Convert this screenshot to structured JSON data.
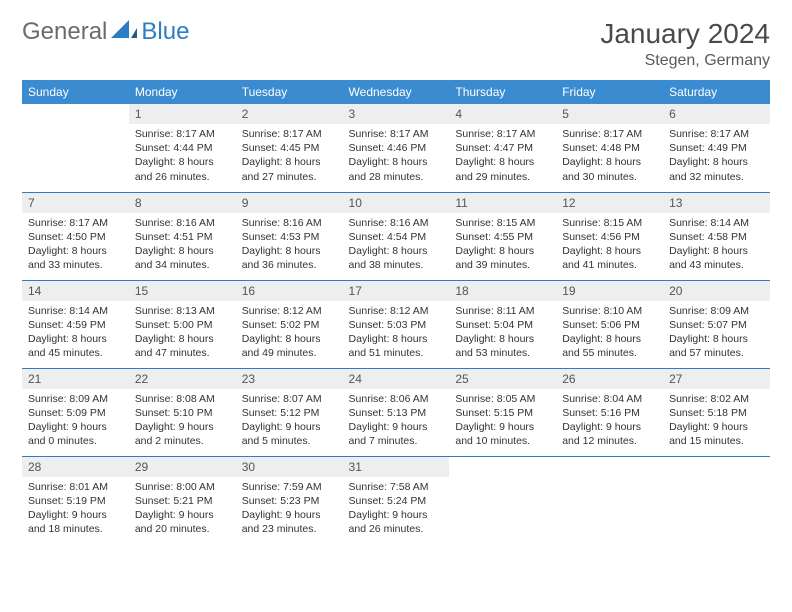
{
  "logo": {
    "general": "General",
    "blue": "Blue"
  },
  "title": "January 2024",
  "location": "Stegen, Germany",
  "colors": {
    "header_bg": "#3a8bd0",
    "header_text": "#ffffff",
    "daynum_bg": "#eceef0",
    "row_divider": "#2d7dc4",
    "logo_gray": "#6b6b6b",
    "logo_blue": "#2d7dc4"
  },
  "weekdays": [
    "Sunday",
    "Monday",
    "Tuesday",
    "Wednesday",
    "Thursday",
    "Friday",
    "Saturday"
  ],
  "weeks": [
    [
      null,
      {
        "n": "1",
        "sr": "Sunrise: 8:17 AM",
        "ss": "Sunset: 4:44 PM",
        "dl": "Daylight: 8 hours and 26 minutes."
      },
      {
        "n": "2",
        "sr": "Sunrise: 8:17 AM",
        "ss": "Sunset: 4:45 PM",
        "dl": "Daylight: 8 hours and 27 minutes."
      },
      {
        "n": "3",
        "sr": "Sunrise: 8:17 AM",
        "ss": "Sunset: 4:46 PM",
        "dl": "Daylight: 8 hours and 28 minutes."
      },
      {
        "n": "4",
        "sr": "Sunrise: 8:17 AM",
        "ss": "Sunset: 4:47 PM",
        "dl": "Daylight: 8 hours and 29 minutes."
      },
      {
        "n": "5",
        "sr": "Sunrise: 8:17 AM",
        "ss": "Sunset: 4:48 PM",
        "dl": "Daylight: 8 hours and 30 minutes."
      },
      {
        "n": "6",
        "sr": "Sunrise: 8:17 AM",
        "ss": "Sunset: 4:49 PM",
        "dl": "Daylight: 8 hours and 32 minutes."
      }
    ],
    [
      {
        "n": "7",
        "sr": "Sunrise: 8:17 AM",
        "ss": "Sunset: 4:50 PM",
        "dl": "Daylight: 8 hours and 33 minutes."
      },
      {
        "n": "8",
        "sr": "Sunrise: 8:16 AM",
        "ss": "Sunset: 4:51 PM",
        "dl": "Daylight: 8 hours and 34 minutes."
      },
      {
        "n": "9",
        "sr": "Sunrise: 8:16 AM",
        "ss": "Sunset: 4:53 PM",
        "dl": "Daylight: 8 hours and 36 minutes."
      },
      {
        "n": "10",
        "sr": "Sunrise: 8:16 AM",
        "ss": "Sunset: 4:54 PM",
        "dl": "Daylight: 8 hours and 38 minutes."
      },
      {
        "n": "11",
        "sr": "Sunrise: 8:15 AM",
        "ss": "Sunset: 4:55 PM",
        "dl": "Daylight: 8 hours and 39 minutes."
      },
      {
        "n": "12",
        "sr": "Sunrise: 8:15 AM",
        "ss": "Sunset: 4:56 PM",
        "dl": "Daylight: 8 hours and 41 minutes."
      },
      {
        "n": "13",
        "sr": "Sunrise: 8:14 AM",
        "ss": "Sunset: 4:58 PM",
        "dl": "Daylight: 8 hours and 43 minutes."
      }
    ],
    [
      {
        "n": "14",
        "sr": "Sunrise: 8:14 AM",
        "ss": "Sunset: 4:59 PM",
        "dl": "Daylight: 8 hours and 45 minutes."
      },
      {
        "n": "15",
        "sr": "Sunrise: 8:13 AM",
        "ss": "Sunset: 5:00 PM",
        "dl": "Daylight: 8 hours and 47 minutes."
      },
      {
        "n": "16",
        "sr": "Sunrise: 8:12 AM",
        "ss": "Sunset: 5:02 PM",
        "dl": "Daylight: 8 hours and 49 minutes."
      },
      {
        "n": "17",
        "sr": "Sunrise: 8:12 AM",
        "ss": "Sunset: 5:03 PM",
        "dl": "Daylight: 8 hours and 51 minutes."
      },
      {
        "n": "18",
        "sr": "Sunrise: 8:11 AM",
        "ss": "Sunset: 5:04 PM",
        "dl": "Daylight: 8 hours and 53 minutes."
      },
      {
        "n": "19",
        "sr": "Sunrise: 8:10 AM",
        "ss": "Sunset: 5:06 PM",
        "dl": "Daylight: 8 hours and 55 minutes."
      },
      {
        "n": "20",
        "sr": "Sunrise: 8:09 AM",
        "ss": "Sunset: 5:07 PM",
        "dl": "Daylight: 8 hours and 57 minutes."
      }
    ],
    [
      {
        "n": "21",
        "sr": "Sunrise: 8:09 AM",
        "ss": "Sunset: 5:09 PM",
        "dl": "Daylight: 9 hours and 0 minutes."
      },
      {
        "n": "22",
        "sr": "Sunrise: 8:08 AM",
        "ss": "Sunset: 5:10 PM",
        "dl": "Daylight: 9 hours and 2 minutes."
      },
      {
        "n": "23",
        "sr": "Sunrise: 8:07 AM",
        "ss": "Sunset: 5:12 PM",
        "dl": "Daylight: 9 hours and 5 minutes."
      },
      {
        "n": "24",
        "sr": "Sunrise: 8:06 AM",
        "ss": "Sunset: 5:13 PM",
        "dl": "Daylight: 9 hours and 7 minutes."
      },
      {
        "n": "25",
        "sr": "Sunrise: 8:05 AM",
        "ss": "Sunset: 5:15 PM",
        "dl": "Daylight: 9 hours and 10 minutes."
      },
      {
        "n": "26",
        "sr": "Sunrise: 8:04 AM",
        "ss": "Sunset: 5:16 PM",
        "dl": "Daylight: 9 hours and 12 minutes."
      },
      {
        "n": "27",
        "sr": "Sunrise: 8:02 AM",
        "ss": "Sunset: 5:18 PM",
        "dl": "Daylight: 9 hours and 15 minutes."
      }
    ],
    [
      {
        "n": "28",
        "sr": "Sunrise: 8:01 AM",
        "ss": "Sunset: 5:19 PM",
        "dl": "Daylight: 9 hours and 18 minutes."
      },
      {
        "n": "29",
        "sr": "Sunrise: 8:00 AM",
        "ss": "Sunset: 5:21 PM",
        "dl": "Daylight: 9 hours and 20 minutes."
      },
      {
        "n": "30",
        "sr": "Sunrise: 7:59 AM",
        "ss": "Sunset: 5:23 PM",
        "dl": "Daylight: 9 hours and 23 minutes."
      },
      {
        "n": "31",
        "sr": "Sunrise: 7:58 AM",
        "ss": "Sunset: 5:24 PM",
        "dl": "Daylight: 9 hours and 26 minutes."
      },
      null,
      null,
      null
    ]
  ]
}
